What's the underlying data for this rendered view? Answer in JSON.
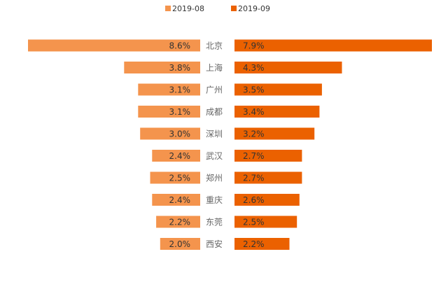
{
  "chart_data": {
    "type": "bar",
    "layout": "butterfly",
    "categories": [
      "北京",
      "上海",
      "广州",
      "成都",
      "深圳",
      "武汉",
      "郑州",
      "重庆",
      "东莞",
      "西安"
    ],
    "series": [
      {
        "name": "2019-08",
        "color": "#F4944D",
        "values": [
          8.6,
          3.8,
          3.1,
          3.1,
          3.0,
          2.4,
          2.5,
          2.4,
          2.2,
          2.0
        ],
        "labels": [
          "8.6%",
          "3.8%",
          "3.1%",
          "3.1%",
          "3.0%",
          "2.4%",
          "2.5%",
          "2.4%",
          "2.2%",
          "2.0%"
        ]
      },
      {
        "name": "2019-09",
        "color": "#EB6100",
        "values": [
          7.9,
          4.3,
          3.5,
          3.4,
          3.2,
          2.7,
          2.7,
          2.6,
          2.5,
          2.2
        ],
        "labels": [
          "7.9%",
          "4.3%",
          "3.5%",
          "3.4%",
          "3.2%",
          "2.7%",
          "2.7%",
          "2.6%",
          "2.5%",
          "2.2%"
        ]
      }
    ],
    "unit": "%",
    "legend_position": "top-center",
    "grid": false
  }
}
